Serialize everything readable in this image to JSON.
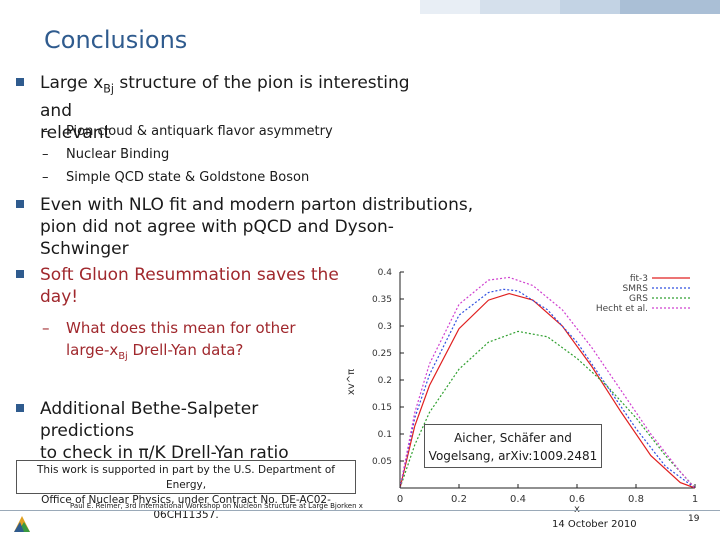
{
  "title": "Conclusions",
  "bullets": {
    "b1": {
      "line1_pre": "Large x",
      "line1_sub": "Bj",
      "line1_post": " structure of the pion is interesting and",
      "line2": "relevant"
    },
    "b1_subs": [
      "Pion cloud & antiquark flavor asymmetry",
      "Nuclear Binding",
      "Simple QCD state & Goldstone Boson"
    ],
    "b2": {
      "line1": "Even with NLO fit and modern parton distributions,",
      "line2": "pion did not agree with pQCD and Dyson-Schwinger"
    },
    "b3": {
      "line1": "Soft Gluon Resummation saves the",
      "line2": "day!"
    },
    "b3_sub": {
      "line1": "What does this mean for other",
      "line2_pre": "large-x",
      "line2_sub": "Bj",
      "line2_post": " Drell-Yan data?"
    },
    "b4": {
      "line1": "Additional Bethe-Salpeter predictions",
      "line2": "to check in π/K Drell-Yan ratio"
    }
  },
  "support_note": {
    "line1": "This work is supported in part by the U.S. Department of Energy,",
    "line2": "Office of Nuclear Physics, under Contract No. DE-AC02-06CH11357."
  },
  "citation": {
    "line1": "Aicher, Schäfer and",
    "line2": "Vogelsang, arXiv:1009.2481"
  },
  "footer": {
    "left": "Paul E. Reimer, 3rd International Workshop on Nucleon Structure at Large Bjorken x",
    "date": "14 October 2010",
    "page": "19"
  },
  "colors": {
    "title": "#2f5b8e",
    "red_text": "#a0282d"
  },
  "chart_data": {
    "type": "line",
    "xlabel": "x",
    "ylabel": "xv^π",
    "xlim": [
      0,
      1
    ],
    "ylim": [
      0,
      0.4
    ],
    "x_ticks": [
      "0",
      "0.2",
      "0.4",
      "0.6",
      "0.8",
      "1"
    ],
    "y_ticks": [
      "0.05",
      "0.1",
      "0.15",
      "0.2",
      "0.25",
      "0.3",
      "0.35",
      "0.4"
    ],
    "legend": {
      "position": "top-right",
      "entries": [
        "fit-3",
        "SMRS",
        "GRS",
        "Hecht et al."
      ]
    },
    "series": [
      {
        "name": "fit-3",
        "color": "#e02020",
        "style": "solid",
        "x": [
          0,
          0.05,
          0.1,
          0.2,
          0.3,
          0.37,
          0.45,
          0.55,
          0.65,
          0.75,
          0.85,
          0.95,
          1.0
        ],
        "y": [
          0,
          0.115,
          0.19,
          0.295,
          0.348,
          0.36,
          0.348,
          0.3,
          0.225,
          0.14,
          0.06,
          0.01,
          0
        ]
      },
      {
        "name": "SMRS",
        "color": "#3050e0",
        "style": "dotted",
        "x": [
          0,
          0.05,
          0.1,
          0.2,
          0.3,
          0.35,
          0.4,
          0.5,
          0.6,
          0.7,
          0.8,
          0.9,
          1.0
        ],
        "y": [
          0,
          0.13,
          0.21,
          0.32,
          0.362,
          0.368,
          0.365,
          0.33,
          0.27,
          0.19,
          0.11,
          0.04,
          0
        ]
      },
      {
        "name": "GRS",
        "color": "#30a030",
        "style": "dotted",
        "x": [
          0,
          0.05,
          0.1,
          0.2,
          0.3,
          0.4,
          0.5,
          0.6,
          0.7,
          0.8,
          0.9,
          1.0
        ],
        "y": [
          0,
          0.08,
          0.14,
          0.22,
          0.27,
          0.29,
          0.28,
          0.24,
          0.19,
          0.13,
          0.06,
          0
        ]
      },
      {
        "name": "Hecht et al.",
        "color": "#d040d0",
        "style": "dotted",
        "x": [
          0,
          0.05,
          0.1,
          0.2,
          0.3,
          0.37,
          0.45,
          0.55,
          0.65,
          0.75,
          0.85,
          0.95,
          1.0
        ],
        "y": [
          0,
          0.14,
          0.23,
          0.34,
          0.385,
          0.39,
          0.375,
          0.33,
          0.26,
          0.18,
          0.1,
          0.03,
          0
        ]
      }
    ]
  }
}
